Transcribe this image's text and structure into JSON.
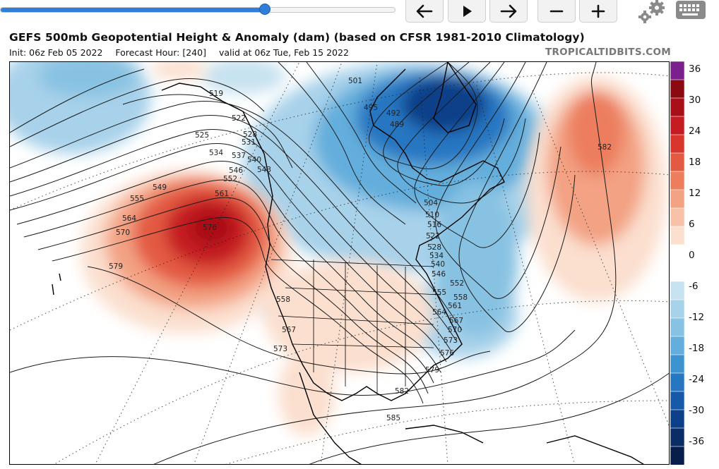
{
  "toolbar": {
    "slider": {
      "position_fraction": 0.67
    },
    "buttons": [
      {
        "name": "back-button",
        "icon": "arrow-left-icon"
      },
      {
        "name": "play-button",
        "icon": "play-icon"
      },
      {
        "name": "forward-button",
        "icon": "arrow-right-icon"
      },
      {
        "name": "zoom-out-button",
        "icon": "minus-icon"
      },
      {
        "name": "zoom-in-button",
        "icon": "plus-icon"
      }
    ],
    "settings_icon": "gear-icon",
    "keyboard_icon": "keyboard-icon"
  },
  "header": {
    "title": "GEFS 500mb Geopotential Height & Anomaly (dam) (based on CFSR 1981-2010 Climatology)",
    "init": "Init: 06z Feb 05 2022",
    "forecast_hour": "Forecast Hour: [240]",
    "valid": "valid at 06z Tue, Feb 15 2022",
    "brand": "TROPICALTIDBITS.COM"
  },
  "colorbar": {
    "labels": [
      "36",
      "30",
      "24",
      "18",
      "12",
      "6",
      "0",
      "-6",
      "-12",
      "-18",
      "-24",
      "-30",
      "-36"
    ],
    "colors": [
      "#7a1f8c",
      "#8b0a12",
      "#a80f18",
      "#c51b22",
      "#d8362c",
      "#e35a42",
      "#ec7e5e",
      "#f3a283",
      "#f8c2a8",
      "#fbdfcf",
      "#ffffff",
      "#ffffff",
      "#c7e2f0",
      "#a8d2ea",
      "#88c2e2",
      "#63aedc",
      "#3d93cf",
      "#2676c1",
      "#1659a8",
      "#0d4089",
      "#0a2d66",
      "#081e4a"
    ]
  },
  "map": {
    "contour_labels": [
      "519",
      "522",
      "525",
      "528",
      "531",
      "534",
      "537",
      "540",
      "543",
      "546",
      "549",
      "552",
      "555",
      "558",
      "561",
      "564",
      "567",
      "570",
      "573",
      "576",
      "579",
      "582",
      "585",
      "489",
      "492",
      "495",
      "501",
      "504",
      "510",
      "516",
      "522",
      "528",
      "534",
      "540",
      "546",
      "552",
      "555",
      "558",
      "561",
      "564",
      "567",
      "570",
      "573",
      "576",
      "579",
      "582"
    ]
  }
}
